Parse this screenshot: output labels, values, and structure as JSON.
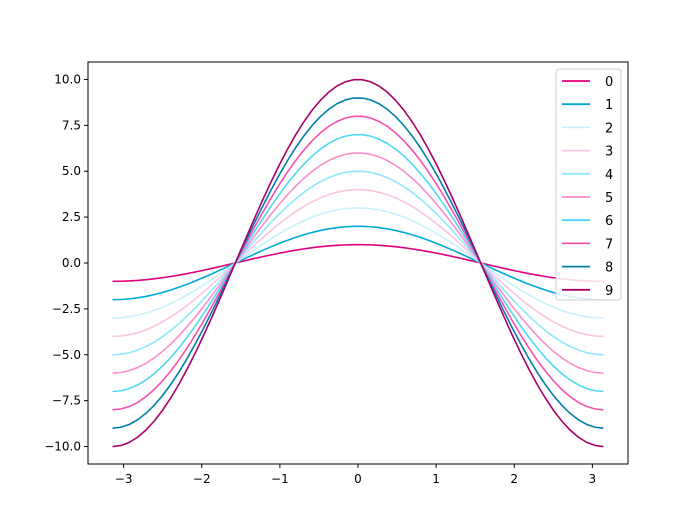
{
  "chart_data": {
    "type": "line",
    "title": "",
    "xlabel": "",
    "ylabel": "",
    "function": "y = k * cos(x), x from -π to π",
    "x_range": [
      -3.14159,
      3.14159
    ],
    "sample_count": 60,
    "xlim": [
      -3.456,
      3.456
    ],
    "ylim": [
      -10.95,
      10.95
    ],
    "xticks": [
      -3,
      -2,
      -1,
      0,
      1,
      2,
      3
    ],
    "xtick_labels": [
      "−3",
      "−2",
      "−1",
      "0",
      "1",
      "2",
      "3"
    ],
    "yticks": [
      -10,
      -7.5,
      -5,
      -2.5,
      0,
      2.5,
      5,
      7.5,
      10
    ],
    "ytick_labels": [
      "−10.0",
      "−7.5",
      "−5.0",
      "−2.5",
      "0.0",
      "2.5",
      "5.0",
      "7.5",
      "10.0"
    ],
    "grid": false,
    "legend_position": "top-right",
    "series": [
      {
        "name": "0",
        "amplitude": 1,
        "color": "#e0007f"
      },
      {
        "name": "1",
        "amplitude": 2,
        "color": "#00aad6"
      },
      {
        "name": "2",
        "amplitude": 3,
        "color": "#c9f1fb"
      },
      {
        "name": "3",
        "amplitude": 4,
        "color": "#fbc4e2"
      },
      {
        "name": "4",
        "amplitude": 5,
        "color": "#8ee8fa"
      },
      {
        "name": "5",
        "amplitude": 6,
        "color": "#fb8ccb"
      },
      {
        "name": "6",
        "amplitude": 7,
        "color": "#4fd8f5"
      },
      {
        "name": "7",
        "amplitude": 8,
        "color": "#f74fb0"
      },
      {
        "name": "8",
        "amplitude": 9,
        "color": "#007fa8"
      },
      {
        "name": "9",
        "amplitude": 10,
        "color": "#a8006a"
      }
    ]
  }
}
